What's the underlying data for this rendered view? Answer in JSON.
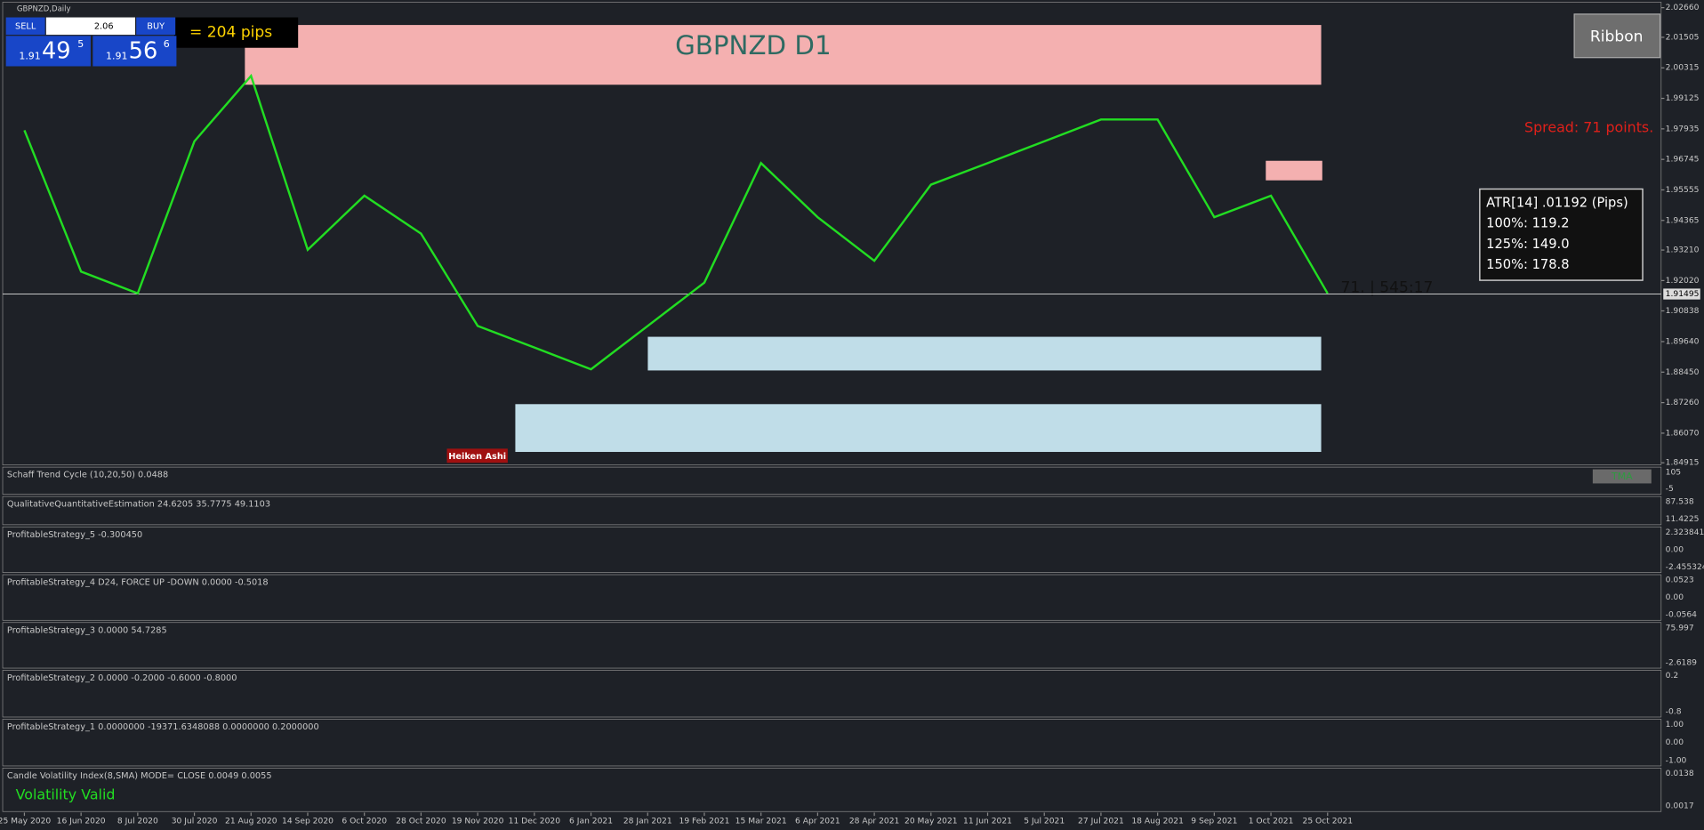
{
  "window_title": "GBPNZD,Daily",
  "trade_panel": {
    "sell": "SELL",
    "buy": "BUY",
    "lot": "2.06",
    "sell_price": {
      "big": "1.91",
      "main": "49",
      "sup": "5"
    },
    "buy_price": {
      "big": "1.91",
      "main": "56",
      "sup": "6"
    }
  },
  "pips_label": "= 204 pips",
  "ribbon_button": "Ribbon",
  "spread": "Spread: 71 points.",
  "atr": [
    "ATR[14] .01192  (Pips)",
    "100%: 119.2",
    "125%: 149.0",
    "150%: 178.8"
  ],
  "timer": "71. | 545:17",
  "heiken_ashi": "Heiken Ashi",
  "tma_button": "TMA",
  "volatility_status": "Volatility Valid",
  "chart_data": {
    "type": "line",
    "title": "GBPNZD D1",
    "x": [
      "25 May 2020",
      "16 Jun 2020",
      "8 Jul 2020",
      "30 Jul 2020",
      "21 Aug 2020",
      "14 Sep 2020",
      "6 Oct 2020",
      "28 Oct 2020",
      "19 Nov 2020",
      "11 Dec 2020",
      "6 Jan 2021",
      "28 Jan 2021",
      "19 Feb 2021",
      "15 Mar 2021",
      "6 Apr 2021",
      "28 Apr 2021",
      "20 May 2021",
      "11 Jun 2021",
      "5 Jul 2021",
      "27 Jul 2021",
      "18 Aug 2021",
      "9 Sep 2021",
      "1 Oct 2021",
      "25 Oct 2021"
    ],
    "values": [
      1.9788,
      1.9237,
      1.9152,
      1.9745,
      2.0,
      1.9322,
      1.9533,
      1.9385,
      1.9025,
      1.8941,
      1.8856,
      1.9025,
      1.9194,
      1.966,
      1.9449,
      1.9279,
      1.9576,
      1.966,
      1.9745,
      1.983,
      1.983,
      1.9449,
      1.9533,
      1.9152
    ],
    "color": "#22dd22",
    "ylim": [
      1.8483,
      2.0279
    ],
    "yticks": [
      {
        "value": 2.0266,
        "label": "2.02660"
      },
      {
        "value": 2.01505,
        "label": "2.01505"
      },
      {
        "value": 2.00315,
        "label": "2.00315"
      },
      {
        "value": 1.99125,
        "label": "1.99125"
      },
      {
        "value": 1.97935,
        "label": "1.97935"
      },
      {
        "value": 1.96745,
        "label": "1.96745"
      },
      {
        "value": 1.95555,
        "label": "1.95555"
      },
      {
        "value": 1.94365,
        "label": "1.94365"
      },
      {
        "value": 1.9321,
        "label": "1.93210"
      },
      {
        "value": 1.9202,
        "label": "1.92020"
      },
      {
        "value": 1.90838,
        "label": "1.90838"
      },
      {
        "value": 1.8964,
        "label": "1.89640"
      },
      {
        "value": 1.8845,
        "label": "1.88450"
      },
      {
        "value": 1.8726,
        "label": "1.87260"
      },
      {
        "value": 1.8607,
        "label": "1.86070"
      },
      {
        "value": 1.84915,
        "label": "1.84915"
      }
    ],
    "current_price": {
      "value": 1.91495,
      "label": "1.91495"
    }
  },
  "indicators": [
    {
      "label": "Schaff Trend Cycle (10,20,50) 0.0488",
      "axis": [
        "105",
        "-5"
      ]
    },
    {
      "label": "QualitativeQuantitativeEstimation 24.6205 35.7775 49.1103",
      "axis": [
        "87.538",
        "11.4225"
      ]
    },
    {
      "label": "ProfitableStrategy_5 -0.300450",
      "axis": [
        "2.323841",
        "0.00",
        "-2.455324"
      ]
    },
    {
      "label": "ProfitableStrategy_4  D24, FORCE UP -DOWN  0.0000 -0.5018",
      "axis": [
        "0.0523",
        "0.00",
        "-0.0564"
      ]
    },
    {
      "label": "ProfitableStrategy_3  0.0000 54.7285",
      "axis": [
        "75.997",
        "-2.6189"
      ]
    },
    {
      "label": "ProfitableStrategy_2 0.0000 -0.2000 -0.6000 -0.8000",
      "axis": [
        "0.2",
        "-0.8"
      ]
    },
    {
      "label": "ProfitableStrategy_1 0.0000000 -19371.6348088 0.0000000 0.2000000",
      "axis": [
        "1.00",
        "0.00",
        "-1.00"
      ]
    },
    {
      "label": "Candle Volatility Index(8,SMA) MODE= CLOSE 0.0049 0.0055",
      "axis": [
        "0.0138",
        "0.0017"
      ]
    }
  ]
}
